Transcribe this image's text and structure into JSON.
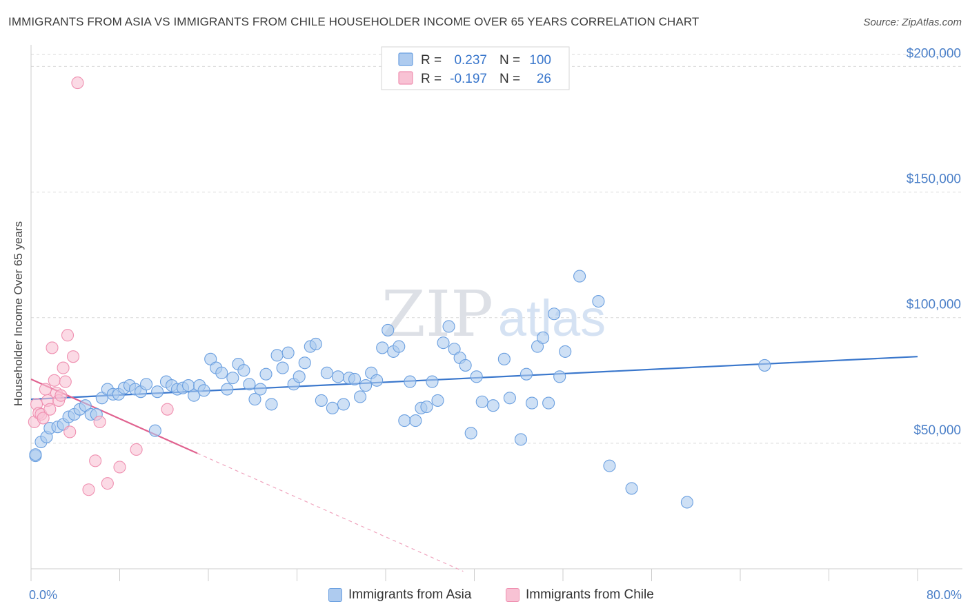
{
  "header": {
    "title": "IMMIGRANTS FROM ASIA VS IMMIGRANTS FROM CHILE HOUSEHOLDER INCOME OVER 65 YEARS CORRELATION CHART",
    "source": "Source: ZipAtlas.com"
  },
  "watermark": {
    "zip": "ZIP",
    "atlas": "atlas"
  },
  "chart_data": {
    "type": "scatter",
    "ylabel": "Householder Income Over 65 years",
    "xlim": [
      0,
      80
    ],
    "ylim": [
      0,
      210000
    ],
    "x_tick_labels": {
      "min": "0.0%",
      "max": "80.0%"
    },
    "y_ticks": [
      {
        "value": 50000,
        "label": "$50,000"
      },
      {
        "value": 100000,
        "label": "$100,000"
      },
      {
        "value": 150000,
        "label": "$150,000"
      },
      {
        "value": 200000,
        "label": "$200,000"
      }
    ],
    "legend_position": "top-center",
    "stats": [
      {
        "r_label": "R =",
        "r": "0.237",
        "n_label": "N =",
        "n": "100"
      },
      {
        "r_label": "R =",
        "r": "-0.197",
        "n_label": "N =",
        "n": "26"
      }
    ],
    "series": [
      {
        "name": "Immigrants from Asia",
        "color": "#6a9fe0",
        "fill": "#aecbef",
        "line_color": "#3a77cc",
        "trend": {
          "x": [
            0,
            80
          ],
          "y": [
            67500,
            84500
          ]
        },
        "points": [
          [
            0.4,
            45000
          ],
          [
            0.9,
            50500
          ],
          [
            1.4,
            52500
          ],
          [
            1.7,
            56000
          ],
          [
            2.4,
            56500
          ],
          [
            2.9,
            57500
          ],
          [
            3.4,
            60500
          ],
          [
            3.9,
            61500
          ],
          [
            4.4,
            63500
          ],
          [
            4.9,
            65000
          ],
          [
            5.4,
            61500
          ],
          [
            5.9,
            61500
          ],
          [
            6.4,
            68000
          ],
          [
            6.9,
            71500
          ],
          [
            7.4,
            69500
          ],
          [
            7.9,
            69500
          ],
          [
            8.4,
            72000
          ],
          [
            8.9,
            73000
          ],
          [
            9.4,
            71500
          ],
          [
            9.9,
            70500
          ],
          [
            10.4,
            73500
          ],
          [
            11.2,
            55000
          ],
          [
            11.4,
            70500
          ],
          [
            12.2,
            74500
          ],
          [
            12.7,
            73000
          ],
          [
            13.2,
            71500
          ],
          [
            13.7,
            72000
          ],
          [
            14.2,
            73000
          ],
          [
            14.7,
            69000
          ],
          [
            15.2,
            73000
          ],
          [
            15.6,
            71000
          ],
          [
            16.2,
            83500
          ],
          [
            16.7,
            80000
          ],
          [
            17.2,
            78000
          ],
          [
            17.7,
            71500
          ],
          [
            18.2,
            76000
          ],
          [
            18.7,
            81500
          ],
          [
            19.2,
            79000
          ],
          [
            19.7,
            73500
          ],
          [
            20.2,
            67500
          ],
          [
            20.7,
            71500
          ],
          [
            21.2,
            77500
          ],
          [
            21.7,
            65500
          ],
          [
            22.2,
            85000
          ],
          [
            22.7,
            80000
          ],
          [
            23.2,
            86000
          ],
          [
            23.7,
            73500
          ],
          [
            24.2,
            76500
          ],
          [
            24.7,
            82000
          ],
          [
            25.2,
            88500
          ],
          [
            25.7,
            89500
          ],
          [
            26.2,
            67000
          ],
          [
            26.7,
            78000
          ],
          [
            27.2,
            64000
          ],
          [
            27.7,
            76500
          ],
          [
            28.2,
            65500
          ],
          [
            28.7,
            76000
          ],
          [
            29.2,
            75500
          ],
          [
            29.7,
            68500
          ],
          [
            30.2,
            73000
          ],
          [
            30.7,
            78000
          ],
          [
            31.2,
            75000
          ],
          [
            31.7,
            88000
          ],
          [
            32.2,
            95000
          ],
          [
            32.7,
            86500
          ],
          [
            33.2,
            88500
          ],
          [
            33.7,
            59000
          ],
          [
            34.2,
            74500
          ],
          [
            34.7,
            59000
          ],
          [
            35.2,
            64000
          ],
          [
            35.7,
            64500
          ],
          [
            36.2,
            74500
          ],
          [
            36.7,
            67000
          ],
          [
            37.2,
            90000
          ],
          [
            37.7,
            96500
          ],
          [
            38.2,
            87500
          ],
          [
            38.7,
            84000
          ],
          [
            39.2,
            81000
          ],
          [
            39.7,
            54000
          ],
          [
            40.2,
            76500
          ],
          [
            40.7,
            66500
          ],
          [
            41.7,
            65000
          ],
          [
            42.7,
            83500
          ],
          [
            43.2,
            68000
          ],
          [
            44.2,
            51500
          ],
          [
            44.7,
            77500
          ],
          [
            45.2,
            66000
          ],
          [
            45.7,
            88500
          ],
          [
            46.2,
            92000
          ],
          [
            46.7,
            66000
          ],
          [
            47.2,
            101500
          ],
          [
            47.7,
            76500
          ],
          [
            48.2,
            86500
          ],
          [
            49.5,
            116500
          ],
          [
            51.2,
            106500
          ],
          [
            52.2,
            41000
          ],
          [
            54.2,
            32000
          ],
          [
            59.2,
            26500
          ],
          [
            66.2,
            81000
          ],
          [
            0.4,
            45500
          ]
        ]
      },
      {
        "name": "Immigrants from Chile",
        "color": "#ef8fb0",
        "fill": "#f8c2d4",
        "line_color": "#e0628f",
        "trend": {
          "x": [
            0,
            15
          ],
          "y": [
            75500,
            46000
          ]
        },
        "trend_extension": {
          "x": [
            15,
            39
          ],
          "y": [
            46000,
            -1000
          ]
        },
        "points": [
          [
            0.3,
            58500
          ],
          [
            0.5,
            65500
          ],
          [
            0.7,
            62000
          ],
          [
            0.9,
            61500
          ],
          [
            1.1,
            60000
          ],
          [
            1.3,
            71500
          ],
          [
            1.5,
            67000
          ],
          [
            1.7,
            63500
          ],
          [
            1.9,
            88000
          ],
          [
            2.1,
            75000
          ],
          [
            2.3,
            70000
          ],
          [
            2.5,
            67000
          ],
          [
            2.7,
            69000
          ],
          [
            2.9,
            80000
          ],
          [
            3.1,
            74500
          ],
          [
            3.3,
            93000
          ],
          [
            3.5,
            54500
          ],
          [
            3.8,
            84500
          ],
          [
            4.2,
            193500
          ],
          [
            5.2,
            31500
          ],
          [
            5.8,
            43000
          ],
          [
            6.2,
            58500
          ],
          [
            6.9,
            34000
          ],
          [
            8.0,
            40500
          ],
          [
            9.5,
            47500
          ],
          [
            12.3,
            63500
          ]
        ]
      }
    ]
  }
}
